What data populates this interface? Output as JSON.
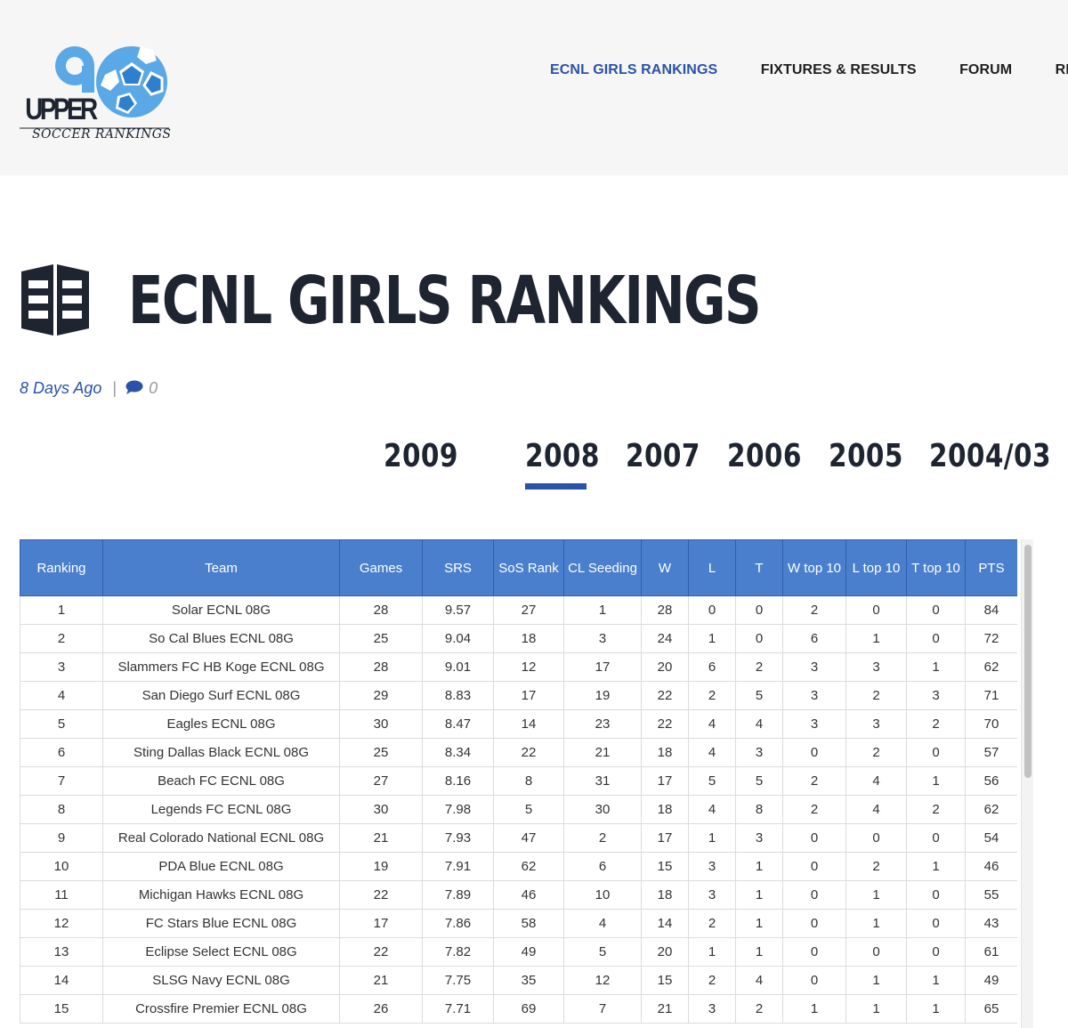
{
  "header": {
    "logo_text_top": "UPPER",
    "logo_text_bottom": "SOCCER RANKINGS",
    "nav": [
      {
        "label": "ECNL GIRLS RANKINGS",
        "active": true
      },
      {
        "label": "FIXTURES & RESULTS",
        "active": false
      },
      {
        "label": "FORUM",
        "active": false
      },
      {
        "label": "REGIST",
        "active": false
      }
    ]
  },
  "page": {
    "title": "ECNL GIRLS RANKINGS",
    "posted": "8 Days Ago",
    "separator": "|",
    "comment_count": "0"
  },
  "tabs": [
    {
      "label": "2009",
      "active": false
    },
    {
      "label": "2008",
      "active": true
    },
    {
      "label": "2007",
      "active": false
    },
    {
      "label": "2006",
      "active": false
    },
    {
      "label": "2005",
      "active": false
    },
    {
      "label": "2004/03",
      "active": false
    }
  ],
  "table": {
    "columns": [
      "Ranking",
      "Team",
      "Games",
      "SRS",
      "SoS Rank",
      "CL Seeding",
      "W",
      "L",
      "T",
      "W top 10",
      "L top 10",
      "T top 10",
      "PTS"
    ],
    "rows": [
      [
        "1",
        "Solar ECNL 08G",
        "28",
        "9.57",
        "27",
        "1",
        "28",
        "0",
        "0",
        "2",
        "0",
        "0",
        "84"
      ],
      [
        "2",
        "So Cal Blues ECNL 08G",
        "25",
        "9.04",
        "18",
        "3",
        "24",
        "1",
        "0",
        "6",
        "1",
        "0",
        "72"
      ],
      [
        "3",
        "Slammers FC HB Koge ECNL 08G",
        "28",
        "9.01",
        "12",
        "17",
        "20",
        "6",
        "2",
        "3",
        "3",
        "1",
        "62"
      ],
      [
        "4",
        "San Diego Surf ECNL 08G",
        "29",
        "8.83",
        "17",
        "19",
        "22",
        "2",
        "5",
        "3",
        "2",
        "3",
        "71"
      ],
      [
        "5",
        "Eagles ECNL 08G",
        "30",
        "8.47",
        "14",
        "23",
        "22",
        "4",
        "4",
        "3",
        "3",
        "2",
        "70"
      ],
      [
        "6",
        "Sting Dallas Black ECNL 08G",
        "25",
        "8.34",
        "22",
        "21",
        "18",
        "4",
        "3",
        "0",
        "2",
        "0",
        "57"
      ],
      [
        "7",
        "Beach FC ECNL 08G",
        "27",
        "8.16",
        "8",
        "31",
        "17",
        "5",
        "5",
        "2",
        "4",
        "1",
        "56"
      ],
      [
        "8",
        "Legends FC ECNL 08G",
        "30",
        "7.98",
        "5",
        "30",
        "18",
        "4",
        "8",
        "2",
        "4",
        "2",
        "62"
      ],
      [
        "9",
        "Real Colorado National ECNL 08G",
        "21",
        "7.93",
        "47",
        "2",
        "17",
        "1",
        "3",
        "0",
        "0",
        "0",
        "54"
      ],
      [
        "10",
        "PDA Blue ECNL 08G",
        "19",
        "7.91",
        "62",
        "6",
        "15",
        "3",
        "1",
        "0",
        "2",
        "1",
        "46"
      ],
      [
        "11",
        "Michigan Hawks ECNL 08G",
        "22",
        "7.89",
        "46",
        "10",
        "18",
        "3",
        "1",
        "0",
        "1",
        "0",
        "55"
      ],
      [
        "12",
        "FC Stars Blue ECNL 08G",
        "17",
        "7.86",
        "58",
        "4",
        "14",
        "2",
        "1",
        "0",
        "1",
        "0",
        "43"
      ],
      [
        "13",
        "Eclipse Select ECNL 08G",
        "22",
        "7.82",
        "49",
        "5",
        "20",
        "1",
        "1",
        "0",
        "0",
        "0",
        "61"
      ],
      [
        "14",
        "SLSG Navy ECNL 08G",
        "21",
        "7.75",
        "35",
        "12",
        "15",
        "2",
        "4",
        "0",
        "1",
        "1",
        "49"
      ],
      [
        "15",
        "Crossfire Premier ECNL 08G",
        "26",
        "7.71",
        "69",
        "7",
        "21",
        "3",
        "2",
        "1",
        "1",
        "1",
        "65"
      ]
    ]
  },
  "colors": {
    "accent": "#2a52a8",
    "table_header": "#4a7fce",
    "title": "#1e2530",
    "header_bg": "#f6f6f6"
  },
  "icons": {
    "logo": "soccer-ball-logo-icon",
    "title": "book-icon",
    "comment": "comment-bubble-icon"
  }
}
